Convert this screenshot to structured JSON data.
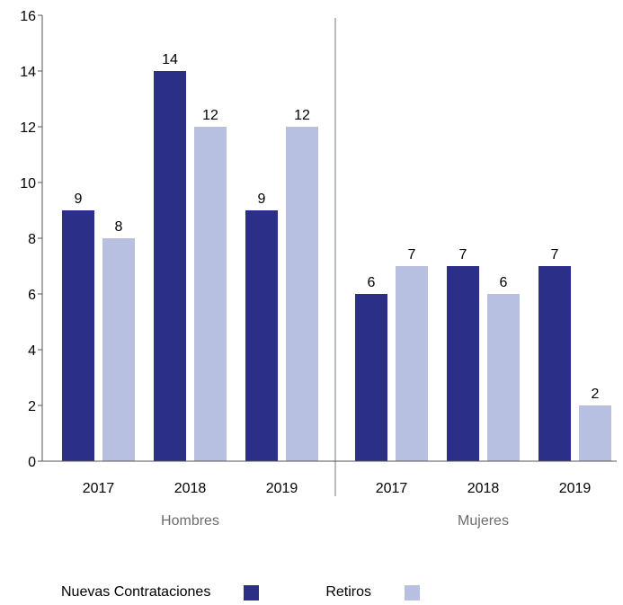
{
  "colors": {
    "nuevas": "#2b2f87",
    "retiros": "#b8c0e1",
    "axis": "#555555"
  },
  "chart_data": {
    "type": "bar",
    "ylim": [
      0,
      16
    ],
    "yticks": [
      0,
      2,
      4,
      6,
      8,
      10,
      12,
      14,
      16
    ],
    "groups": [
      {
        "name": "Hombres",
        "categories": [
          "2017",
          "2018",
          "2019"
        ]
      },
      {
        "name": "Mujeres",
        "categories": [
          "2017",
          "2018",
          "2019"
        ]
      }
    ],
    "series": [
      {
        "name": "Nuevas Contrataciones",
        "values": [
          [
            9,
            14,
            9
          ],
          [
            6,
            7,
            7
          ]
        ]
      },
      {
        "name": "Retiros",
        "values": [
          [
            8,
            12,
            12
          ],
          [
            7,
            6,
            2
          ]
        ]
      }
    ],
    "legend": "bottom-left",
    "grid": false
  }
}
